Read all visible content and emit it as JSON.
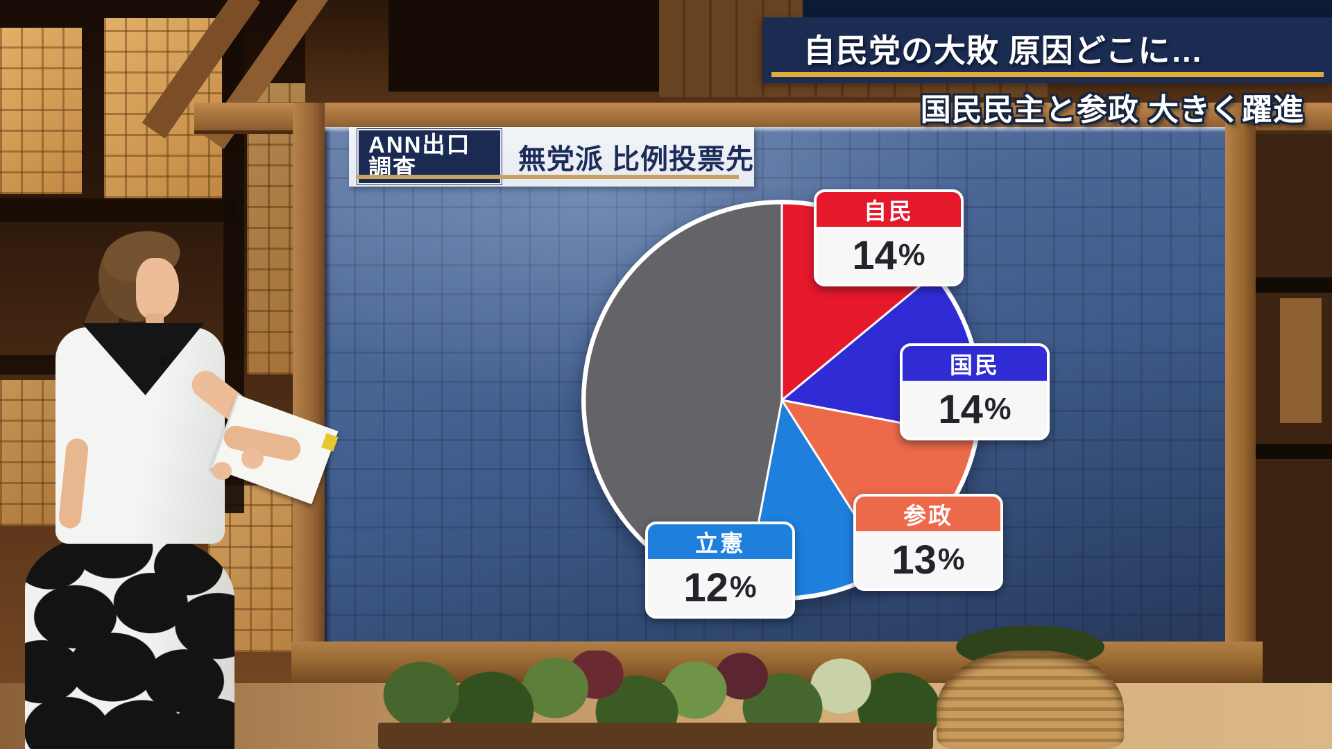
{
  "banner": {
    "headline": "自民党の大敗 原因どこに…",
    "subheadline": "国民民主と参政 大きく躍進"
  },
  "board": {
    "source_tag": "ANN出口調査",
    "title": "無党派 比例投票先"
  },
  "chart_data": {
    "type": "pie",
    "source": "ANN出口調査",
    "title": "無党派 比例投票先",
    "unit": "%",
    "start_angle_deg": 0,
    "clockwise": true,
    "series": [
      {
        "name": "自民",
        "value": 14,
        "color": "#e6182b"
      },
      {
        "name": "国民",
        "value": 14,
        "color": "#2f2bd5"
      },
      {
        "name": "参政",
        "value": 13,
        "color": "#ec6a4a"
      },
      {
        "name": "立憲",
        "value": 12,
        "color": "#1e80dc"
      }
    ],
    "unlabeled_remainder": {
      "value": 47,
      "color": "#646468"
    },
    "legend": "none",
    "label_style": "rounded boxes with colored headers overlapping slices"
  },
  "colors": {
    "banner_navy": "#1a2c52",
    "banner_gold": "#e4ab38",
    "title_navy": "#1c2c5a",
    "title_underline_gold": "#c8a263",
    "screen_blue": "#3e5a8a",
    "slice_border": "#ffffff"
  }
}
